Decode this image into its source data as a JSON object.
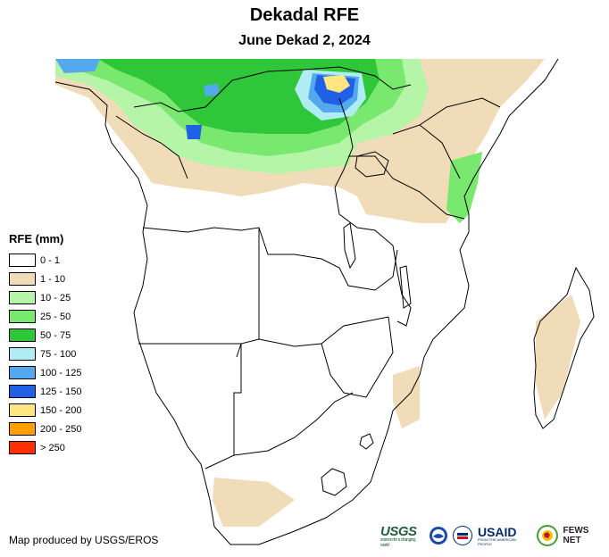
{
  "header": {
    "title": "Dekadal RFE",
    "subtitle": "June Dekad 2, 2024"
  },
  "legend": {
    "title": "RFE (mm)",
    "items": [
      {
        "label": "0 - 1",
        "color": "#ffffff"
      },
      {
        "label": "1 - 10",
        "color": "#f0dcb8"
      },
      {
        "label": "10 - 25",
        "color": "#b4f5a8"
      },
      {
        "label": "25 - 50",
        "color": "#78e86e"
      },
      {
        "label": "50 - 75",
        "color": "#2fc63a"
      },
      {
        "label": "75 - 100",
        "color": "#b0ecf4"
      },
      {
        "label": "100 - 125",
        "color": "#54a8ee"
      },
      {
        "label": "125 - 150",
        "color": "#2060e6"
      },
      {
        "label": "150 - 200",
        "color": "#ffe680"
      },
      {
        "label": "200 - 250",
        "color": "#ffa000"
      },
      {
        "label": "> 250",
        "color": "#ff3000"
      }
    ]
  },
  "footer": {
    "credit": "Map produced by USGS/EROS",
    "logos": {
      "usgs": "USGS",
      "usgs_tagline": "science for a changing world",
      "usaid": "USAID",
      "usaid_tagline": "FROM THE AMERICAN PEOPLE",
      "fews": "FEWS NET"
    }
  }
}
